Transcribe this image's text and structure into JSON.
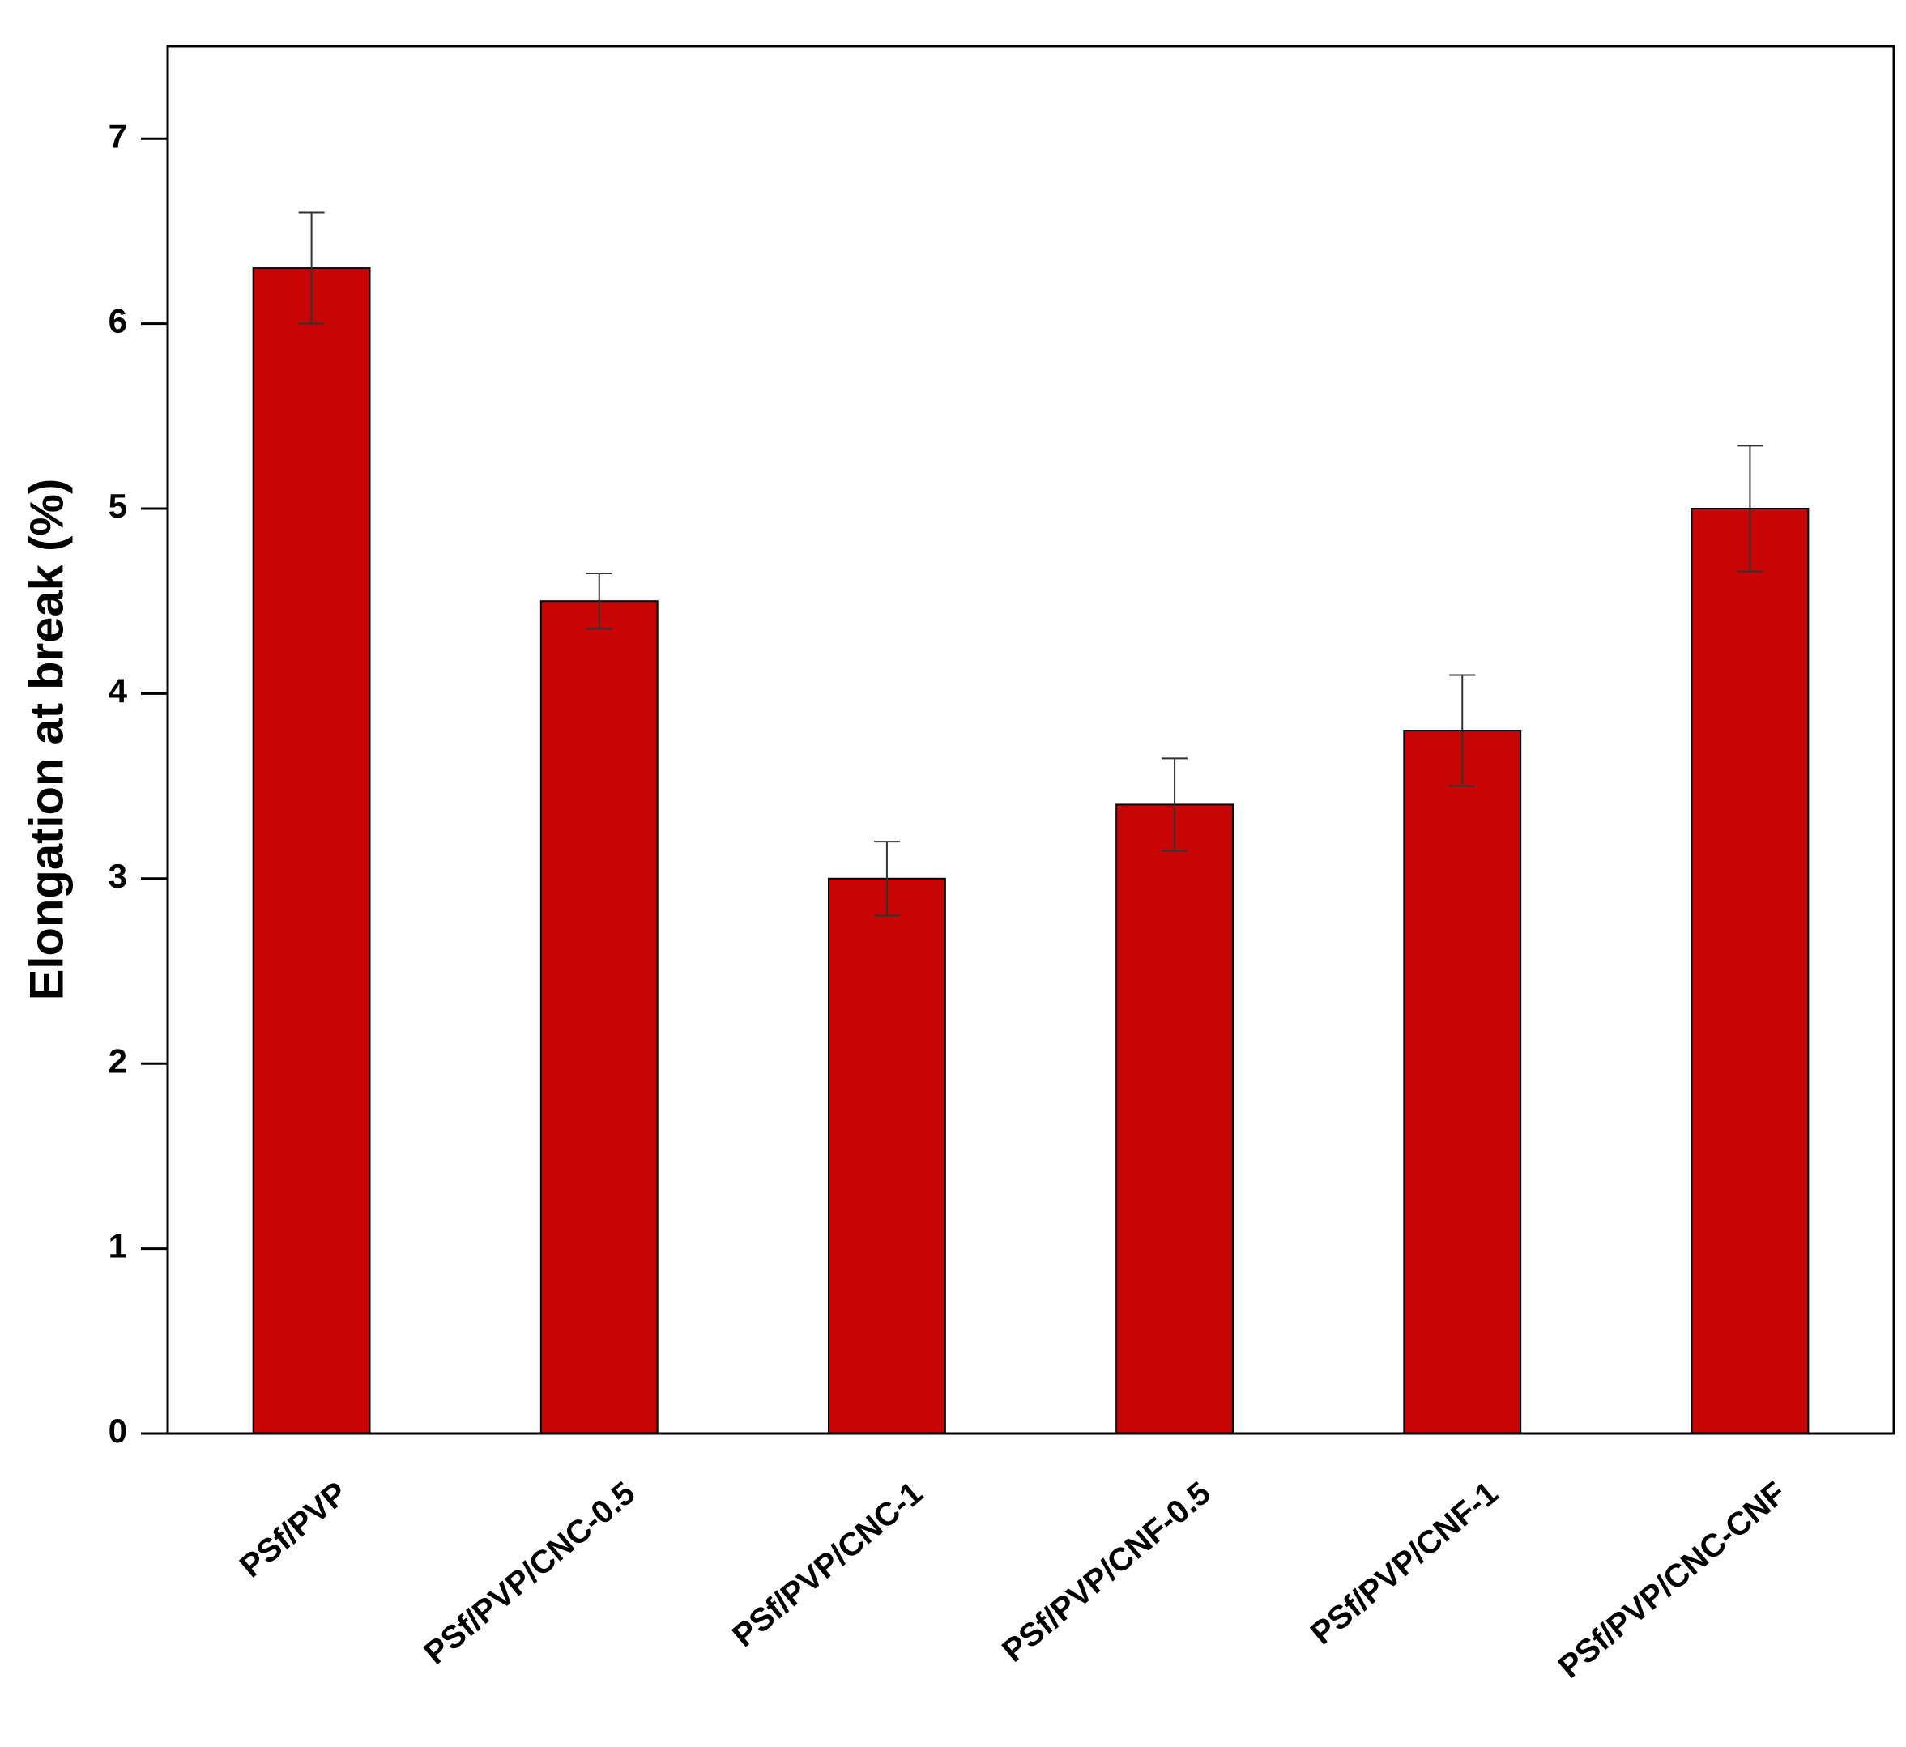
{
  "chart_data": {
    "type": "bar",
    "y_label": "Elongation at break (%)",
    "categories": [
      "PSf/PVP",
      "PSf/PVP/CNC-0.5",
      "PSf/PVP/CNC-1",
      "PSf/PVP/CNF-0.5",
      "PSf/PVP/CNF-1",
      "PSf/PVP/CNC-CNF"
    ],
    "values": [
      6.3,
      4.5,
      3.0,
      3.4,
      3.8,
      5.0
    ],
    "errors": [
      0.3,
      0.15,
      0.2,
      0.25,
      0.3,
      0.34
    ],
    "color": "#c80505",
    "ylim": [
      0,
      7.5
    ],
    "yticks": [
      0,
      1,
      2,
      3,
      4,
      5,
      6,
      7
    ],
    "grid": false
  }
}
